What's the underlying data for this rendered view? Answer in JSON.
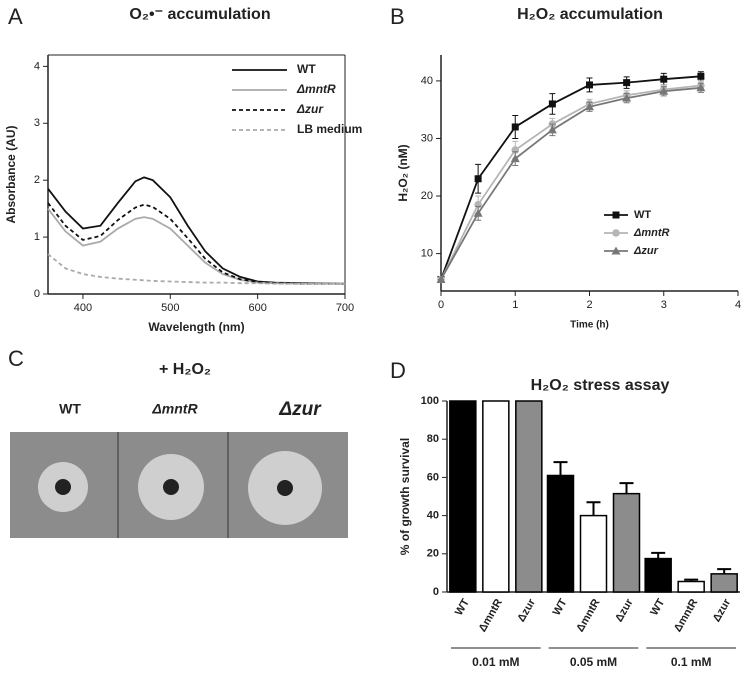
{
  "panel_labels": [
    "A",
    "B",
    "C",
    "D"
  ],
  "chart_data": [
    {
      "type": "line",
      "title": "O₂•⁻ accumulation",
      "xlabel": "Wavelength (nm)",
      "ylabel": "Absorbance (AU)",
      "x": [
        360,
        380,
        400,
        420,
        440,
        460,
        470,
        480,
        500,
        520,
        540,
        560,
        580,
        600,
        620,
        650,
        700
      ],
      "xlim": [
        360,
        700
      ],
      "xticks": [
        400,
        500,
        600,
        700
      ],
      "ylim": [
        0,
        4.2
      ],
      "yticks": [
        0,
        1,
        2,
        3,
        4
      ],
      "legend": "upper right",
      "series": [
        {
          "name": "WT",
          "color": "#111111",
          "dash": false,
          "values": [
            1.85,
            1.45,
            1.15,
            1.2,
            1.6,
            1.98,
            2.05,
            2.0,
            1.7,
            1.2,
            0.75,
            0.45,
            0.3,
            0.22,
            0.2,
            0.19,
            0.18
          ]
        },
        {
          "name": "ΔmntR",
          "color": "#aaaaaa",
          "dash": false,
          "values": [
            1.5,
            1.1,
            0.85,
            0.92,
            1.15,
            1.32,
            1.35,
            1.32,
            1.15,
            0.85,
            0.55,
            0.35,
            0.25,
            0.2,
            0.19,
            0.18,
            0.18
          ]
        },
        {
          "name": "Δzur",
          "color": "#111111",
          "dash": true,
          "values": [
            1.6,
            1.2,
            0.95,
            1.02,
            1.3,
            1.52,
            1.57,
            1.53,
            1.32,
            0.98,
            0.62,
            0.38,
            0.26,
            0.21,
            0.19,
            0.18,
            0.18
          ]
        },
        {
          "name": "LB medium",
          "color": "#aaaaaa",
          "dash": true,
          "values": [
            0.7,
            0.45,
            0.35,
            0.3,
            0.27,
            0.25,
            0.24,
            0.23,
            0.22,
            0.21,
            0.2,
            0.2,
            0.19,
            0.19,
            0.18,
            0.18,
            0.18
          ]
        }
      ]
    },
    {
      "type": "line",
      "title": "H₂O₂ accumulation",
      "xlabel": "Time (h)",
      "ylabel": "H₂O₂ (nM)",
      "x": [
        0,
        0.5,
        1,
        1.5,
        2,
        2.5,
        3,
        3.5
      ],
      "xlim": [
        0,
        4
      ],
      "xticks": [
        0,
        1,
        2,
        3,
        4
      ],
      "ylim": [
        3.5,
        44.5
      ],
      "yticks": [
        10,
        20,
        30,
        40
      ],
      "legend": "lower right",
      "series": [
        {
          "name": "WT",
          "color": "#111111",
          "marker": "square",
          "values": [
            5.5,
            23,
            32,
            36,
            39.3,
            39.7,
            40.3,
            40.8
          ],
          "errors": [
            0,
            2.5,
            2,
            1.8,
            1.2,
            1,
            1,
            0.8
          ]
        },
        {
          "name": "ΔmntR",
          "color": "#b5b5b5",
          "marker": "circle",
          "values": [
            5.5,
            18.5,
            28,
            32.5,
            36,
            37.5,
            38.5,
            39.2
          ],
          "errors": [
            0,
            1.5,
            1.5,
            1,
            0.8,
            0.8,
            0.8,
            0.8
          ]
        },
        {
          "name": "Δzur",
          "color": "#777777",
          "marker": "triangle",
          "values": [
            5.5,
            17,
            26.5,
            31.5,
            35.5,
            37,
            38.2,
            38.8
          ],
          "errors": [
            0,
            1.2,
            1.2,
            1,
            0.8,
            0.8,
            0.8,
            0.8
          ]
        }
      ]
    },
    {
      "type": "bar",
      "title": "H₂O₂ stress assay",
      "ylabel": "% of growth survival",
      "categories": [
        "0.01 mM",
        "0.05 mM",
        "0.1 mM"
      ],
      "ylim": [
        0,
        100
      ],
      "yticks": [
        0,
        20,
        40,
        60,
        80,
        100
      ],
      "series": [
        {
          "name": "WT",
          "color": "#000000",
          "values": [
            100,
            61,
            17.5
          ],
          "errors": [
            0,
            7,
            3
          ]
        },
        {
          "name": "ΔmntR",
          "color": "#ffffff",
          "values": [
            100,
            40,
            5.5
          ],
          "errors": [
            0,
            7,
            1
          ]
        },
        {
          "name": "Δzur",
          "color": "#8c8c8c",
          "values": [
            100,
            51.5,
            9.5
          ],
          "errors": [
            0,
            5.5,
            2.5
          ]
        }
      ]
    }
  ],
  "plate_panel": {
    "title": "+ H₂O₂",
    "labels": [
      "WT",
      "ΔmntR",
      "Δzur"
    ]
  }
}
